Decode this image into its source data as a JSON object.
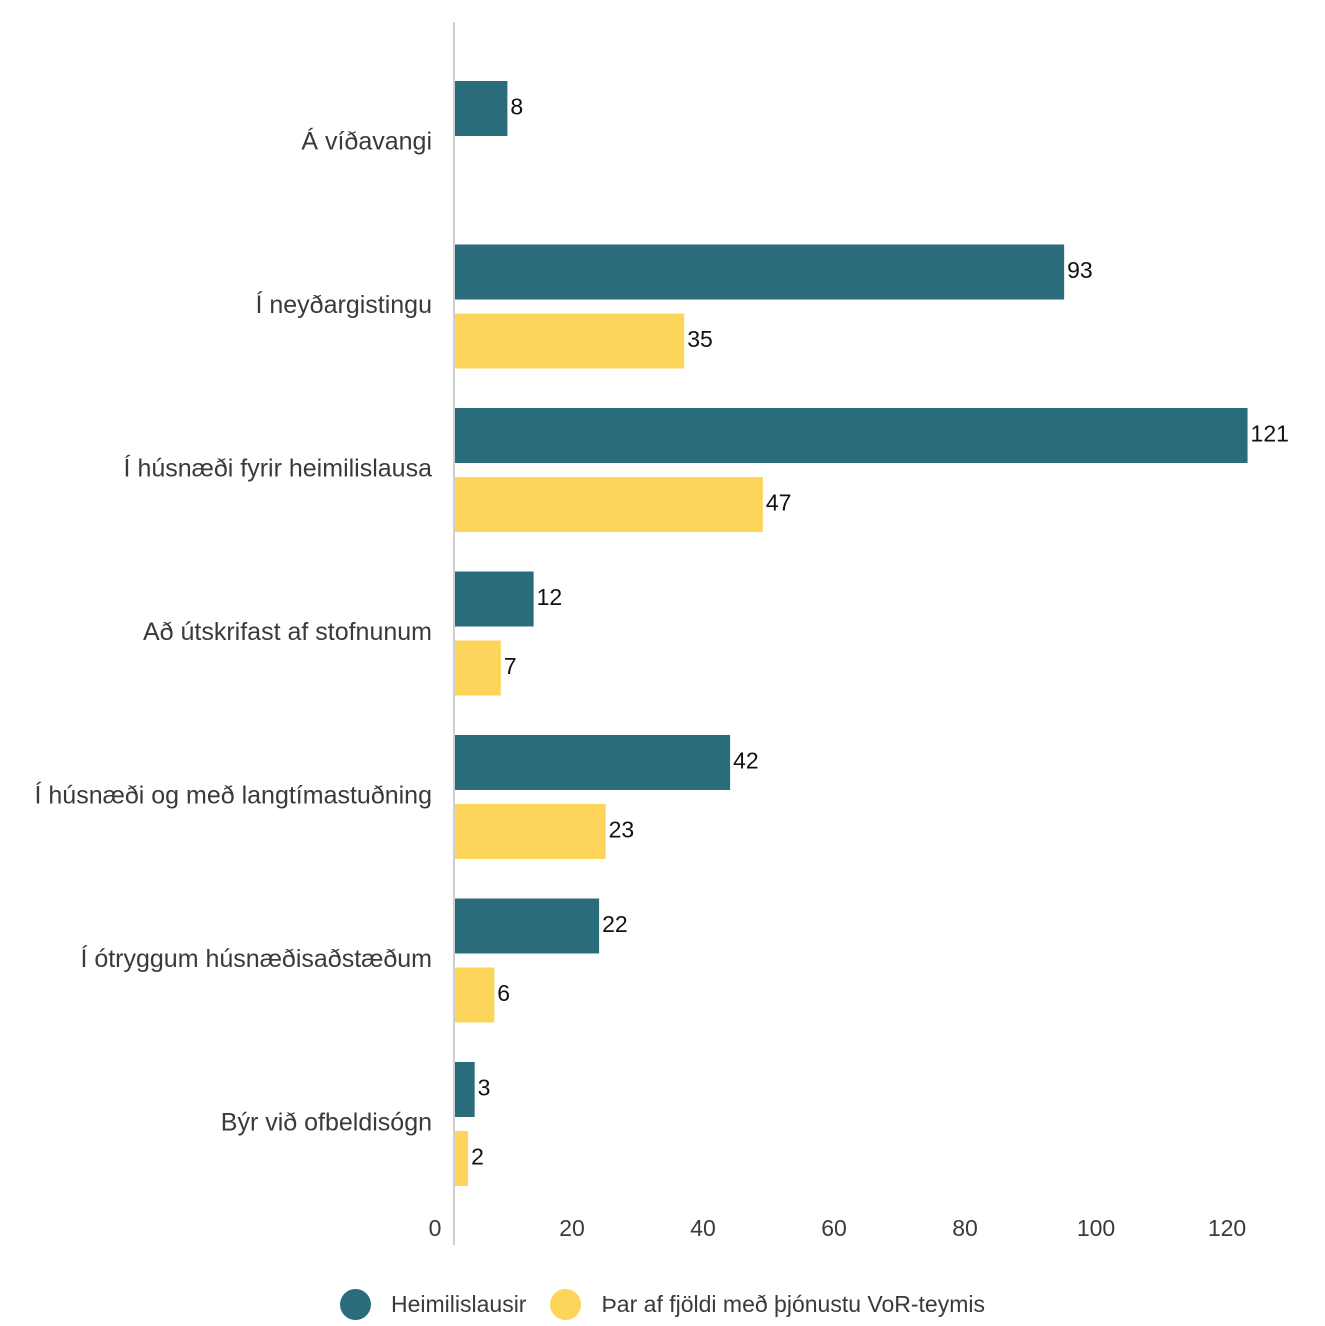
{
  "chart_data": {
    "type": "bar",
    "orientation": "horizontal",
    "categories": [
      "Á víðavangi",
      "Í neyðargistingu",
      "Í húsnæði fyrir heimilislausa",
      "Að útskrifast af stofnunum",
      "Í húsnæði og með langtímastuðning",
      "Í ótryggum húsnæðisaðstæðum",
      "Býr við ofbeldisógn"
    ],
    "series": [
      {
        "name": "Heimilislausir",
        "color": "#2a6b7c",
        "values": [
          8,
          93,
          121,
          12,
          42,
          22,
          3
        ]
      },
      {
        "name": "Þar af fjöldi með þjónustu VoR-teymis",
        "color": "#fdd55a",
        "values": [
          null,
          35,
          47,
          7,
          23,
          6,
          2
        ]
      }
    ],
    "xlim": [
      0,
      120
    ],
    "x_ticks": [
      "0",
      "20",
      "40",
      "60",
      "80",
      "100",
      "120"
    ],
    "title": "",
    "xlabel": "",
    "ylabel": "",
    "grid": false,
    "legend_position": "bottom"
  }
}
